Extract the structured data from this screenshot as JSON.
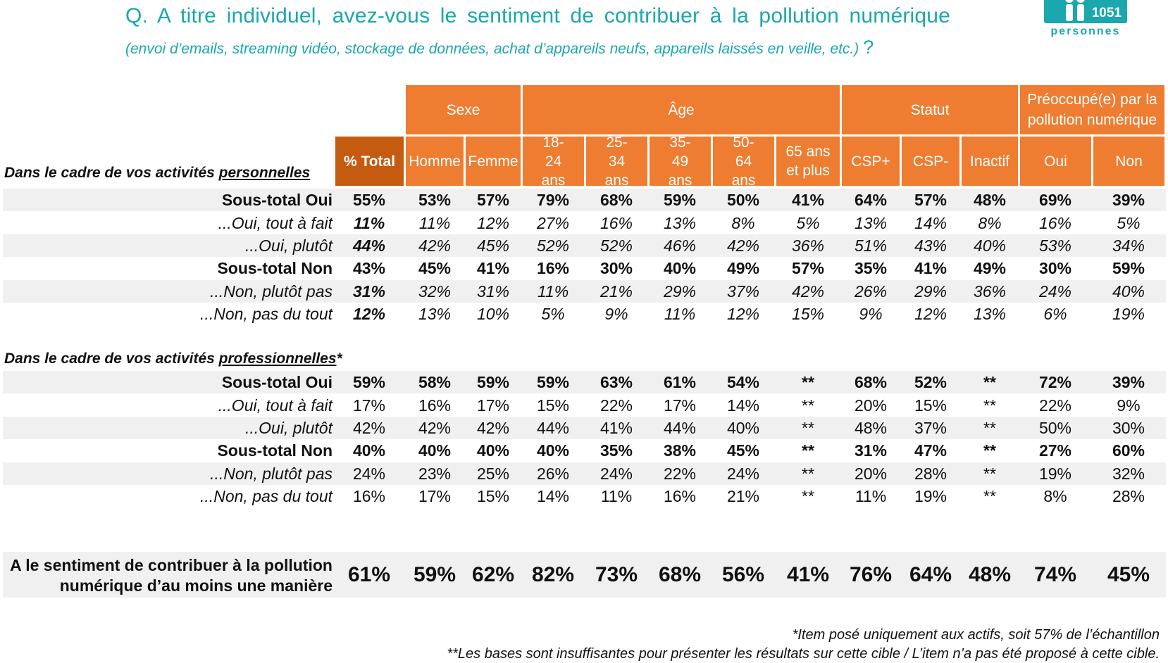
{
  "header": {
    "question": "Q. A titre individuel, avez-vous le sentiment de contribuer à la pollution numérique",
    "subtitle": "(envoi d’emails, streaming vidéo, stockage de données, achat d’appareils neufs, appareils laissés en veille, etc.)",
    "question_mark": "?",
    "sample_count": "1051",
    "sample_label": "personnes"
  },
  "groups": [
    "Sexe",
    "Âge",
    "Statut",
    "Préoccupé(e) par la pollution numérique"
  ],
  "columns": [
    "% Total",
    "Homme",
    "Femme",
    "18-24 ans",
    "25-34 ans",
    "35-49 ans",
    "50-64 ans",
    "65 ans et plus",
    "CSP+",
    "CSP-",
    "Inactif",
    "Oui",
    "Non"
  ],
  "section_personal": {
    "prefix": "Dans le cadre de vos activités ",
    "underlined": "personnelles",
    "suffix": ""
  },
  "section_pro": {
    "prefix": "Dans le cadre de vos activités ",
    "underlined": "professionnelles",
    "suffix": "*"
  },
  "personal_rows": [
    {
      "label": "Sous-total Oui",
      "values": [
        "55%",
        "53%",
        "57%",
        "79%",
        "68%",
        "59%",
        "50%",
        "41%",
        "64%",
        "57%",
        "48%",
        "69%",
        "39%"
      ]
    },
    {
      "label": "...Oui, tout à fait",
      "values": [
        "11%",
        "11%",
        "12%",
        "27%",
        "16%",
        "13%",
        "8%",
        "5%",
        "13%",
        "14%",
        "8%",
        "16%",
        "5%"
      ]
    },
    {
      "label": "...Oui, plutôt",
      "values": [
        "44%",
        "42%",
        "45%",
        "52%",
        "52%",
        "46%",
        "42%",
        "36%",
        "51%",
        "43%",
        "40%",
        "53%",
        "34%"
      ]
    },
    {
      "label": "Sous-total Non",
      "values": [
        "43%",
        "45%",
        "41%",
        "16%",
        "30%",
        "40%",
        "49%",
        "57%",
        "35%",
        "41%",
        "49%",
        "30%",
        "59%"
      ]
    },
    {
      "label": "...Non, plutôt pas",
      "values": [
        "31%",
        "32%",
        "31%",
        "11%",
        "21%",
        "29%",
        "37%",
        "42%",
        "26%",
        "29%",
        "36%",
        "24%",
        "40%"
      ]
    },
    {
      "label": "...Non, pas du tout",
      "values": [
        "12%",
        "13%",
        "10%",
        "5%",
        "9%",
        "11%",
        "12%",
        "15%",
        "9%",
        "12%",
        "13%",
        "6%",
        "19%"
      ]
    }
  ],
  "pro_rows": [
    {
      "label": "Sous-total Oui",
      "values": [
        "59%",
        "58%",
        "59%",
        "59%",
        "63%",
        "61%",
        "54%",
        "**",
        "68%",
        "52%",
        "**",
        "72%",
        "39%"
      ]
    },
    {
      "label": "...Oui, tout à fait",
      "values": [
        "17%",
        "16%",
        "17%",
        "15%",
        "22%",
        "17%",
        "14%",
        "**",
        "20%",
        "15%",
        "**",
        "22%",
        "9%"
      ]
    },
    {
      "label": "...Oui, plutôt",
      "values": [
        "42%",
        "42%",
        "42%",
        "44%",
        "41%",
        "44%",
        "40%",
        "**",
        "48%",
        "37%",
        "**",
        "50%",
        "30%"
      ]
    },
    {
      "label": "Sous-total Non",
      "values": [
        "40%",
        "40%",
        "40%",
        "40%",
        "35%",
        "38%",
        "45%",
        "**",
        "31%",
        "47%",
        "**",
        "27%",
        "60%"
      ]
    },
    {
      "label": "...Non, plutôt pas",
      "values": [
        "24%",
        "23%",
        "25%",
        "26%",
        "24%",
        "22%",
        "24%",
        "**",
        "20%",
        "28%",
        "**",
        "19%",
        "32%"
      ]
    },
    {
      "label": "...Non, pas du tout",
      "values": [
        "16%",
        "17%",
        "15%",
        "14%",
        "11%",
        "16%",
        "21%",
        "**",
        "11%",
        "19%",
        "**",
        "8%",
        "28%"
      ]
    }
  ],
  "final_row": {
    "label_line1": "A le sentiment de contribuer à la pollution",
    "label_line2": "numérique d’au moins une manière",
    "values": [
      "61%",
      "59%",
      "62%",
      "82%",
      "73%",
      "68%",
      "56%",
      "41%",
      "76%",
      "64%",
      "48%",
      "74%",
      "45%"
    ]
  },
  "footnotes": {
    "note1": "*Item posé uniquement aux actifs, soit 57% de l’échantillon",
    "note2": "**Les bases sont insuffisantes pour présenter les résultats sur cette cible / L’item n’a pas été proposé à cette cible."
  },
  "colors": {
    "accent_teal": "#1aa7ad",
    "header_orange": "#ee7d31",
    "total_orange": "#c55a11",
    "row_shade": "#f0f0f0"
  }
}
